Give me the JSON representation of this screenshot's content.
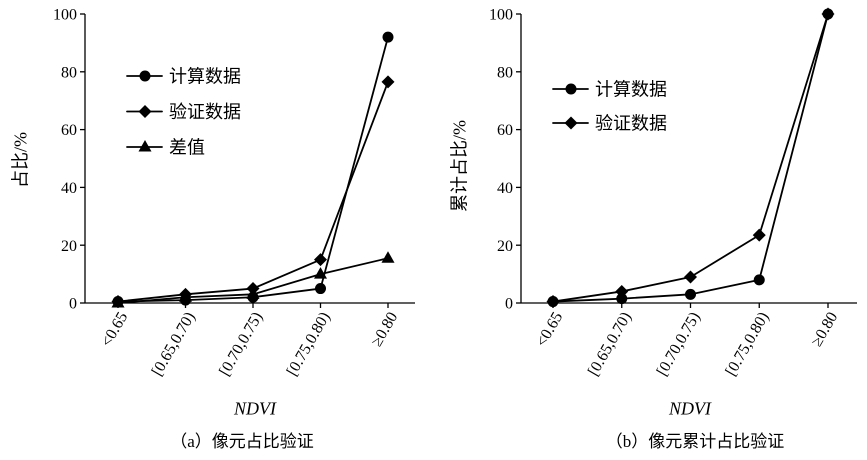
{
  "chart_data": [
    {
      "type": "line",
      "categories": [
        "<0.65",
        "[0.65,0.70)",
        "[0.70,0.75)",
        "[0.75,0.80)",
        "≥0.80"
      ],
      "series": [
        {
          "name": "计算数据",
          "marker": "circle",
          "color": "#000000",
          "values": [
            0.5,
            1,
            2,
            5,
            92
          ]
        },
        {
          "name": "验证数据",
          "marker": "diamond",
          "color": "#000000",
          "values": [
            0.5,
            3,
            5,
            15,
            76.5
          ]
        },
        {
          "name": "差值",
          "marker": "triangle",
          "color": "#000000",
          "values": [
            0,
            2,
            3,
            10,
            15.5
          ]
        }
      ],
      "xlabel": "NDVI",
      "ylabel": "占比/%",
      "ylim": [
        0,
        100
      ],
      "yticks": [
        0,
        20,
        40,
        60,
        80,
        100
      ],
      "grid": false,
      "legend": "upper-left",
      "caption": "（a）像元占比验证"
    },
    {
      "type": "line",
      "categories": [
        "<0.65",
        "[0.65,0.70)",
        "[0.70,0.75)",
        "[0.75,0.80)",
        "≥0.80"
      ],
      "series": [
        {
          "name": "计算数据",
          "marker": "circle",
          "color": "#000000",
          "values": [
            0.5,
            1.5,
            3,
            8,
            100
          ]
        },
        {
          "name": "验证数据",
          "marker": "diamond",
          "color": "#000000",
          "values": [
            0.5,
            4,
            9,
            23.5,
            100
          ]
        }
      ],
      "xlabel": "NDVI",
      "ylabel": "累计占比/%",
      "ylim": [
        0,
        100
      ],
      "yticks": [
        0,
        20,
        40,
        60,
        80,
        100
      ],
      "grid": false,
      "legend": "upper-left",
      "caption": "（b）像元累计占比验证"
    }
  ]
}
